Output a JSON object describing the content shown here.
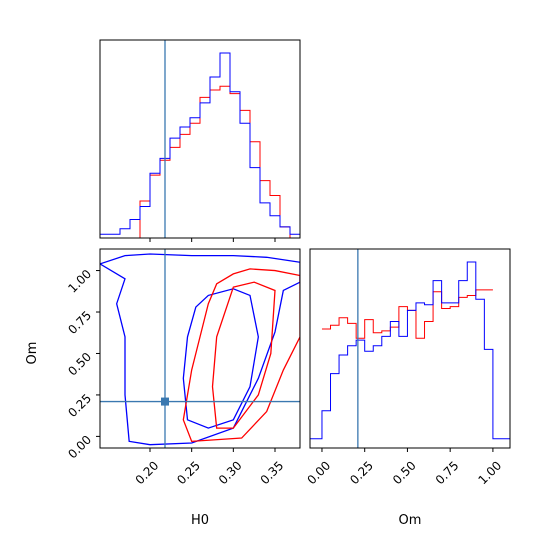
{
  "chart_data": {
    "type": "corner",
    "parameters": [
      "H0",
      "Om"
    ],
    "truth": {
      "H0": 0.218,
      "Om": 0.21
    },
    "colors": {
      "red": "#ff0000",
      "blue": "#0000ff",
      "truth": "#3a78b0"
    },
    "panels": [
      {
        "id": "hist-H0",
        "type": "histogram",
        "xlabel": "",
        "xlim": [
          0.14,
          0.38
        ],
        "ylim": [
          0,
          1.0
        ],
        "series": [
          {
            "color": "#ff0000",
            "bins": [
              0.14,
              0.152,
              0.164,
              0.176,
              0.188,
              0.2,
              0.212,
              0.224,
              0.236,
              0.248,
              0.26,
              0.272,
              0.284,
              0.296,
              0.308,
              0.32,
              0.332,
              0.344,
              0.356,
              0.368,
              0.38
            ],
            "values": [
              0.0,
              0.0,
              0.0,
              0.0,
              0.2,
              0.34,
              0.42,
              0.49,
              0.56,
              0.62,
              0.76,
              0.8,
              0.82,
              0.78,
              0.69,
              0.52,
              0.31,
              0.23,
              0.06,
              0.0
            ]
          },
          {
            "color": "#0000ff",
            "bins": [
              0.14,
              0.152,
              0.164,
              0.176,
              0.188,
              0.2,
              0.212,
              0.224,
              0.236,
              0.248,
              0.26,
              0.272,
              0.284,
              0.296,
              0.308,
              0.32,
              0.332,
              0.344,
              0.356,
              0.368,
              0.38
            ],
            "values": [
              0.02,
              0.02,
              0.05,
              0.1,
              0.17,
              0.35,
              0.43,
              0.54,
              0.6,
              0.65,
              0.73,
              0.87,
              1.0,
              0.79,
              0.62,
              0.38,
              0.19,
              0.12,
              0.06,
              0.02
            ]
          }
        ]
      },
      {
        "id": "contour-H0-Om",
        "type": "contour",
        "xlabel": "H0",
        "ylabel": "Om",
        "xlim": [
          0.14,
          0.38
        ],
        "ylim": [
          -0.07,
          1.13
        ],
        "xticks": [
          "0.20",
          "0.25",
          "0.30",
          "0.35"
        ],
        "yticks": [
          "0.00",
          "0.25",
          "0.50",
          "0.75",
          "1.00"
        ],
        "xtick_values": [
          0.2,
          0.25,
          0.3,
          0.35
        ],
        "ytick_values": [
          0.0,
          0.25,
          0.5,
          0.75,
          1.0
        ],
        "truth_point": {
          "x": 0.218,
          "y": 0.21
        },
        "contours": [
          {
            "color": "#0000ff",
            "level": "outer",
            "points": [
              [
                0.14,
                1.04
              ],
              [
                0.17,
                1.09
              ],
              [
                0.2,
                1.1
              ],
              [
                0.25,
                1.09
              ],
              [
                0.3,
                1.09
              ],
              [
                0.34,
                1.08
              ],
              [
                0.38,
                1.05
              ],
              [
                0.38,
                0.93
              ],
              [
                0.36,
                0.88
              ],
              [
                0.35,
                0.63
              ],
              [
                0.33,
                0.35
              ],
              [
                0.3,
                0.05
              ],
              [
                0.25,
                -0.04
              ],
              [
                0.2,
                -0.05
              ],
              [
                0.175,
                -0.03
              ],
              [
                0.17,
                0.25
              ],
              [
                0.17,
                0.6
              ],
              [
                0.16,
                0.8
              ],
              [
                0.17,
                0.95
              ],
              [
                0.14,
                1.04
              ]
            ]
          },
          {
            "color": "#0000ff",
            "level": "inner",
            "points": [
              [
                0.255,
                0.78
              ],
              [
                0.27,
                0.85
              ],
              [
                0.3,
                0.89
              ],
              [
                0.32,
                0.85
              ],
              [
                0.33,
                0.6
              ],
              [
                0.32,
                0.3
              ],
              [
                0.3,
                0.1
              ],
              [
                0.27,
                0.05
              ],
              [
                0.245,
                0.1
              ],
              [
                0.24,
                0.35
              ],
              [
                0.245,
                0.6
              ],
              [
                0.255,
                0.78
              ]
            ]
          },
          {
            "color": "#ff0000",
            "level": "outer",
            "points": [
              [
                0.28,
                0.92
              ],
              [
                0.3,
                0.98
              ],
              [
                0.32,
                1.01
              ],
              [
                0.35,
                1.0
              ],
              [
                0.38,
                0.97
              ],
              [
                0.38,
                0.6
              ],
              [
                0.36,
                0.4
              ],
              [
                0.34,
                0.15
              ],
              [
                0.31,
                -0.01
              ],
              [
                0.25,
                -0.03
              ],
              [
                0.24,
                0.1
              ],
              [
                0.25,
                0.4
              ],
              [
                0.26,
                0.6
              ],
              [
                0.27,
                0.8
              ],
              [
                0.28,
                0.92
              ]
            ]
          },
          {
            "color": "#ff0000",
            "level": "inner",
            "points": [
              [
                0.3,
                0.9
              ],
              [
                0.325,
                0.93
              ],
              [
                0.35,
                0.88
              ],
              [
                0.345,
                0.5
              ],
              [
                0.33,
                0.25
              ],
              [
                0.3,
                0.05
              ],
              [
                0.28,
                0.05
              ],
              [
                0.275,
                0.3
              ],
              [
                0.28,
                0.6
              ],
              [
                0.3,
                0.9
              ]
            ]
          }
        ]
      },
      {
        "id": "hist-Om",
        "type": "histogram",
        "xlabel": "Om",
        "xlim": [
          -0.07,
          1.1
        ],
        "xticks": [
          "0.00",
          "0.25",
          "0.50",
          "0.75",
          "1.00"
        ],
        "xtick_values": [
          0.0,
          0.25,
          0.5,
          0.75,
          1.0
        ],
        "ylim": [
          0,
          1.0
        ],
        "series": [
          {
            "color": "#ff0000",
            "bins": [
              0.0,
              0.05,
              0.1,
              0.15,
              0.2,
              0.25,
              0.3,
              0.35,
              0.4,
              0.45,
              0.5,
              0.55,
              0.6,
              0.65,
              0.7,
              0.75,
              0.8,
              0.85,
              0.9,
              0.95,
              1.0
            ],
            "values": [
              0.64,
              0.66,
              0.7,
              0.67,
              0.59,
              0.69,
              0.62,
              0.63,
              0.65,
              0.76,
              0.74,
              0.59,
              0.68,
              0.84,
              0.75,
              0.76,
              0.81,
              0.82,
              0.85,
              0.85
            ]
          },
          {
            "color": "#0000ff",
            "bins": [
              -0.08,
              0.0,
              0.05,
              0.1,
              0.15,
              0.2,
              0.25,
              0.3,
              0.35,
              0.4,
              0.45,
              0.5,
              0.55,
              0.6,
              0.65,
              0.7,
              0.75,
              0.8,
              0.85,
              0.9,
              0.95,
              1.0,
              1.1
            ],
            "values": [
              0.05,
              0.2,
              0.4,
              0.5,
              0.55,
              0.58,
              0.52,
              0.55,
              0.6,
              0.68,
              0.6,
              0.74,
              0.78,
              0.77,
              0.9,
              0.78,
              0.78,
              0.9,
              1.0,
              0.8,
              0.53,
              0.05
            ]
          }
        ]
      }
    ]
  }
}
